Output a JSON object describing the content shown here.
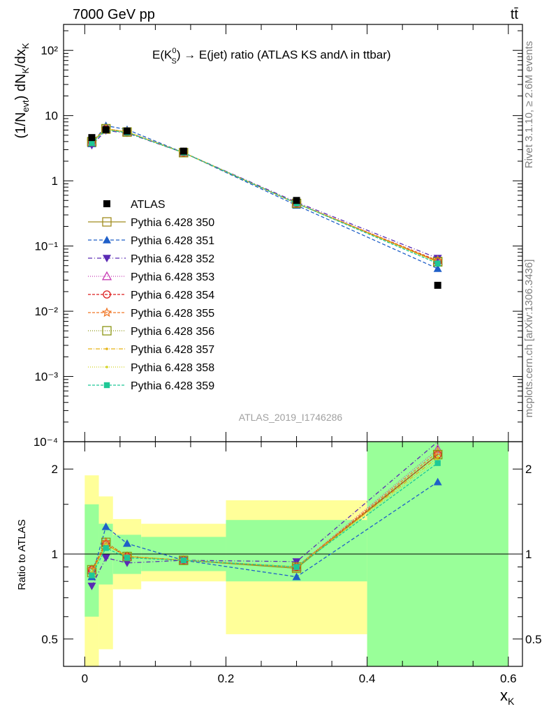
{
  "header": {
    "left": "7000 GeV pp",
    "right": "tt̄"
  },
  "plot_title": {
    "prefix": "E(K",
    "sup": "0",
    "sub": "S",
    "suffix": ") → E(jet) ratio (ATLAS KS andΛ in ttbar)"
  },
  "side_labels": {
    "rivet": "Rivet 3.1.10, ≥ 2.6M events",
    "mcplots": "mcplots.cern.ch [arXiv:1306.3436]"
  },
  "watermark": "ATLAS_2019_I1746286",
  "y_label_main": {
    "p1": "(1/N",
    "sub1": "evt",
    "p2": ") dN",
    "sub2": "K",
    "p3": "/dx",
    "sub3": "K"
  },
  "y_label_ratio": "Ratio to ATLAS",
  "x_label": {
    "main": "x",
    "sub": "K"
  },
  "chart_data": [
    {
      "type": "scatter",
      "panel": "main",
      "x_scale": "linear",
      "y_scale": "log",
      "xlim": [
        -0.03,
        0.62
      ],
      "ylim": [
        0.0001,
        250
      ],
      "x_ticks": [
        0,
        0.2,
        0.4,
        0.6
      ],
      "y_tick_labels": [
        "10⁻⁴",
        "10⁻³",
        "10⁻²",
        "10⁻¹",
        "1",
        "10",
        "10²"
      ],
      "y_tick_values": [
        0.0001,
        0.001,
        0.01,
        0.1,
        1,
        10,
        100
      ],
      "x": [
        0.01,
        0.03,
        0.06,
        0.14,
        0.3,
        0.5
      ],
      "data": {
        "name": "ATLAS",
        "values": [
          4.6,
          6.1,
          5.8,
          2.85,
          0.5,
          0.025
        ],
        "color": "#000000"
      },
      "series": [
        {
          "name": "Pythia 6.428 350",
          "color": "#a08c1e",
          "dash": "",
          "marker": "square-open",
          "values": [
            3.9,
            6.2,
            5.6,
            2.7,
            0.45,
            0.058
          ]
        },
        {
          "name": "Pythia 6.428 351",
          "color": "#1f5fc8",
          "dash": "5,3",
          "marker": "triangle-up",
          "values": [
            3.7,
            7.0,
            6.1,
            2.7,
            0.42,
            0.045
          ]
        },
        {
          "name": "Pythia 6.428 352",
          "color": "#5a2ab4",
          "dash": "6,3,1,3",
          "marker": "triangle-down",
          "values": [
            3.5,
            5.9,
            5.4,
            2.7,
            0.47,
            0.065
          ]
        },
        {
          "name": "Pythia 6.428 353",
          "color": "#c83cb4",
          "dash": "1,2",
          "marker": "triangle-open",
          "values": [
            4.0,
            6.3,
            5.6,
            2.7,
            0.45,
            0.06
          ]
        },
        {
          "name": "Pythia 6.428 354",
          "color": "#dc1e1e",
          "dash": "4,2",
          "marker": "circle-open",
          "values": [
            4.0,
            6.2,
            5.6,
            2.7,
            0.45,
            0.058
          ]
        },
        {
          "name": "Pythia 6.428 355",
          "color": "#f07828",
          "dash": "4,2",
          "marker": "star-open",
          "values": [
            4.0,
            6.3,
            5.6,
            2.7,
            0.45,
            0.06
          ]
        },
        {
          "name": "Pythia 6.428 356",
          "color": "#8c9614",
          "dash": "1,2",
          "marker": "square-open",
          "values": [
            4.0,
            6.3,
            5.6,
            2.7,
            0.45,
            0.057
          ]
        },
        {
          "name": "Pythia 6.428 357",
          "color": "#e6b414",
          "dash": "6,2,1,2",
          "marker": "dot",
          "values": [
            3.9,
            6.2,
            5.6,
            2.7,
            0.45,
            0.057
          ]
        },
        {
          "name": "Pythia 6.428 358",
          "color": "#d2d21e",
          "dash": "1,2",
          "marker": "dot",
          "values": [
            3.9,
            6.2,
            5.6,
            2.7,
            0.45,
            0.056
          ]
        },
        {
          "name": "Pythia 6.428 359",
          "color": "#1ec896",
          "dash": "4,2",
          "marker": "square-filled",
          "values": [
            3.8,
            6.0,
            5.5,
            2.7,
            0.45,
            0.054
          ]
        }
      ]
    },
    {
      "type": "scatter",
      "panel": "ratio",
      "x_scale": "linear",
      "y_scale": "log",
      "xlim": [
        -0.03,
        0.62
      ],
      "ylim": [
        0.4,
        2.5
      ],
      "y_tick_labels": [
        "0.5",
        "1",
        "2"
      ],
      "y_tick_values": [
        0.5,
        1,
        2
      ],
      "bands": [
        {
          "x0": 0.0,
          "x1": 0.02,
          "inner": [
            0.6,
            1.5
          ],
          "outer": [
            0.3,
            1.9
          ]
        },
        {
          "x0": 0.02,
          "x1": 0.04,
          "inner": [
            0.78,
            1.28
          ],
          "outer": [
            0.46,
            1.6
          ]
        },
        {
          "x0": 0.04,
          "x1": 0.08,
          "inner": [
            0.85,
            1.17
          ],
          "outer": [
            0.75,
            1.33
          ]
        },
        {
          "x0": 0.08,
          "x1": 0.2,
          "inner": [
            0.87,
            1.15
          ],
          "outer": [
            0.8,
            1.28
          ]
        },
        {
          "x0": 0.2,
          "x1": 0.4,
          "inner": [
            0.8,
            1.32
          ],
          "outer": [
            0.52,
            1.55
          ]
        },
        {
          "x0": 0.4,
          "x1": 0.6,
          "inner": [
            0.3,
            2.5
          ],
          "outer": [
            0.3,
            2.5
          ]
        }
      ],
      "ratio_values": [
        [
          0.86,
          1.08,
          0.98,
          0.95,
          0.89,
          2.25
        ],
        [
          0.83,
          1.25,
          1.09,
          0.95,
          0.83,
          1.8
        ],
        [
          0.77,
          0.97,
          0.93,
          0.95,
          0.94,
          2.6
        ],
        [
          0.88,
          1.1,
          0.98,
          0.95,
          0.9,
          2.35
        ],
        [
          0.88,
          1.08,
          0.98,
          0.95,
          0.9,
          2.25
        ],
        [
          0.88,
          1.1,
          0.98,
          0.95,
          0.9,
          2.3
        ],
        [
          0.88,
          1.1,
          0.98,
          0.95,
          0.9,
          2.25
        ],
        [
          0.86,
          1.08,
          0.98,
          0.95,
          0.9,
          2.2
        ],
        [
          0.86,
          1.08,
          0.98,
          0.95,
          0.9,
          2.15
        ],
        [
          0.84,
          1.05,
          0.97,
          0.95,
          0.9,
          2.1
        ]
      ],
      "x_tick_labels": [
        "0",
        "0.2",
        "0.4",
        "0.6"
      ]
    }
  ]
}
